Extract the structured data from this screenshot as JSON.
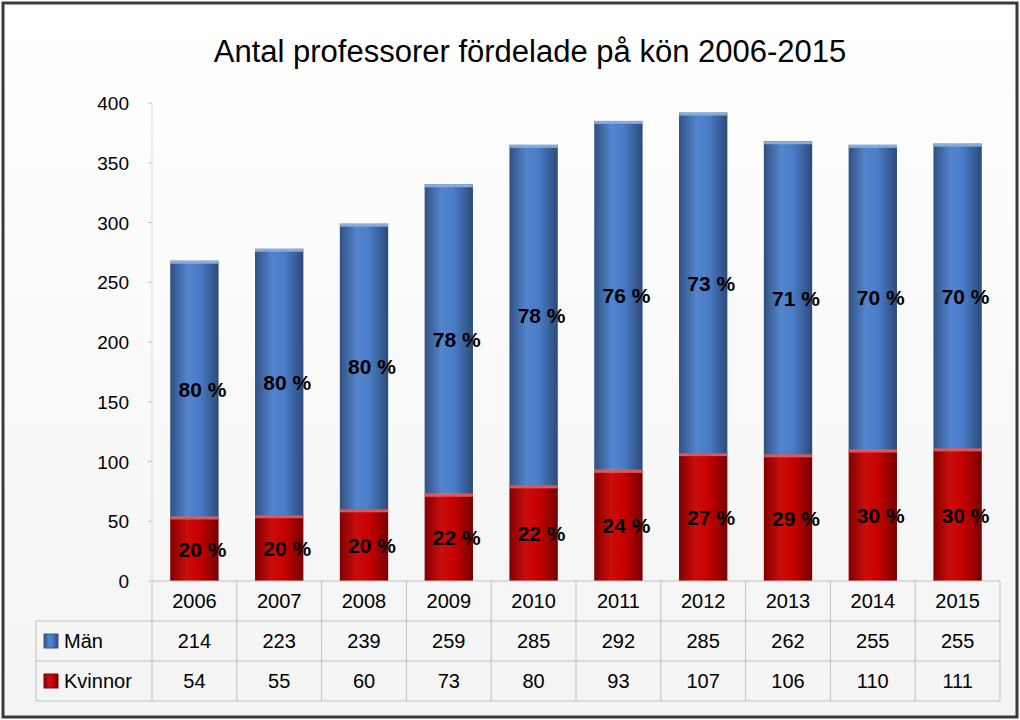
{
  "chart_data": {
    "type": "bar",
    "title": "Antal professorer fördelade på kön 2006-2015",
    "categories": [
      "2006",
      "2007",
      "2008",
      "2009",
      "2010",
      "2011",
      "2012",
      "2013",
      "2014",
      "2015"
    ],
    "series": [
      {
        "name": "Män",
        "color": "#4a7dc9",
        "values": [
          214,
          223,
          239,
          259,
          285,
          292,
          285,
          262,
          255,
          255
        ],
        "percent_labels": [
          "80 %",
          "80 %",
          "80 %",
          "78 %",
          "78 %",
          "76 %",
          "73 %",
          "71 %",
          "70 %",
          "70 %"
        ]
      },
      {
        "name": "Kvinnor",
        "color": "#c80000",
        "values": [
          54,
          55,
          60,
          73,
          80,
          93,
          107,
          106,
          110,
          111
        ],
        "percent_labels": [
          "20 %",
          "20 %",
          "20 %",
          "22 %",
          "22 %",
          "24 %",
          "27 %",
          "29 %",
          "30 %",
          "30 %"
        ]
      }
    ],
    "stacked": true,
    "ylim": [
      0,
      400
    ],
    "yticks": [
      0,
      50,
      100,
      150,
      200,
      250,
      300,
      350,
      400
    ],
    "grid": false
  }
}
